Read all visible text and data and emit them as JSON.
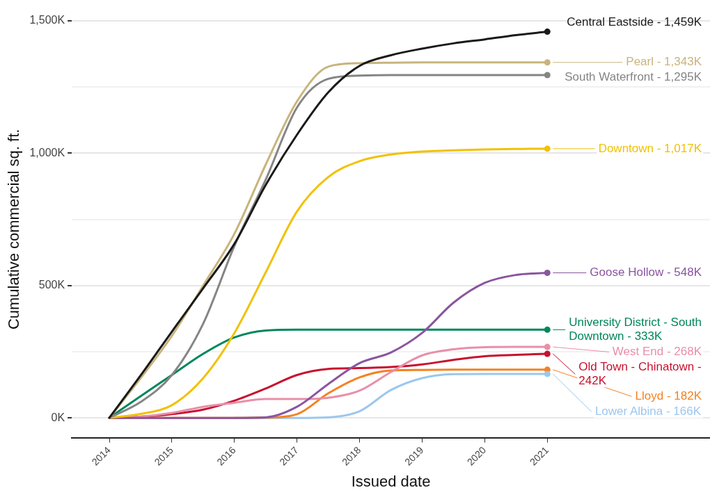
{
  "chart_data": {
    "type": "line",
    "xlabel": "Issued date",
    "ylabel": "Cumulative commercial sq. ft.",
    "x": [
      2014,
      2014.5,
      2015,
      2015.5,
      2016,
      2016.5,
      2017,
      2017.5,
      2018,
      2018.5,
      2019,
      2019.5,
      2020,
      2020.5,
      2021
    ],
    "xlim": [
      2013.4,
      2023.6
    ],
    "xticks": [
      2014,
      2015,
      2016,
      2017,
      2018,
      2019,
      2020,
      2021
    ],
    "ylim": [
      -75,
      1500
    ],
    "yticks": [
      {
        "value": 0,
        "label": "0K"
      },
      {
        "value": 250,
        "label": null
      },
      {
        "value": 500,
        "label": "500K"
      },
      {
        "value": 750,
        "label": null
      },
      {
        "value": 1000,
        "label": "1,000K"
      },
      {
        "value": 1250,
        "label": null
      },
      {
        "value": 1500,
        "label": "1,500K"
      }
    ],
    "grid": "y",
    "legend": "right",
    "line_style": "solid",
    "series": [
      {
        "name": "Central Eastside - 1,459K",
        "color": "#1a1a1a",
        "values": [
          0,
          160,
          326,
          490,
          658,
          880,
          1070,
          1230,
          1330,
          1370,
          1395,
          1415,
          1430,
          1446,
          1459
        ]
      },
      {
        "name": "Pearl - 1,343K",
        "color": "#c8b47c",
        "values": [
          0,
          150,
          310,
          500,
          696,
          957,
          1196,
          1327,
          1340,
          1342,
          1343,
          1343,
          1343,
          1343,
          1343
        ]
      },
      {
        "name": "South Waterfront - 1,295K",
        "color": "#858585",
        "values": [
          0,
          60,
          162,
          356,
          650,
          900,
          1173,
          1281,
          1293,
          1295,
          1295,
          1295,
          1295,
          1295,
          1295
        ]
      },
      {
        "name": "Downtown - 1,017K",
        "color": "#f2c100",
        "values": [
          0,
          15,
          48,
          150,
          321,
          550,
          780,
          910,
          970,
          995,
          1006,
          1011,
          1014,
          1016,
          1017
        ]
      },
      {
        "name": "Goose Hollow - 548K",
        "color": "#8a55a0",
        "values": [
          0,
          0,
          0,
          0,
          0,
          2,
          42,
          128,
          207,
          247,
          321,
          435,
          510,
          540,
          548
        ]
      },
      {
        "name": "University District - South Downtown - 333K",
        "color": "#00875a",
        "values": [
          0,
          82,
          162,
          242,
          304,
          330,
          333,
          333,
          333,
          333,
          333,
          333,
          333,
          333,
          333
        ]
      },
      {
        "name": "West End - 268K",
        "color": "#e88fa9",
        "values": [
          0,
          5,
          19,
          42,
          57,
          71,
          71,
          76,
          103,
          173,
          236,
          259,
          267,
          268,
          268
        ]
      },
      {
        "name": "Old Town - Chinatown - 242K",
        "color": "#c8102e",
        "values": [
          0,
          4,
          14,
          31,
          65,
          111,
          162,
          185,
          188,
          192,
          202,
          219,
          233,
          238,
          242
        ]
      },
      {
        "name": "Lloyd - 182K",
        "color": "#f58220",
        "values": [
          0,
          0,
          0,
          0,
          0,
          1,
          14,
          93,
          153,
          179,
          181,
          182,
          182,
          182,
          182
        ]
      },
      {
        "name": "Lower Albina - 166K",
        "color": "#9cc7ee",
        "values": [
          null,
          null,
          null,
          null,
          0,
          0,
          0,
          2,
          25,
          105,
          150,
          165,
          166,
          166,
          166
        ]
      }
    ]
  }
}
